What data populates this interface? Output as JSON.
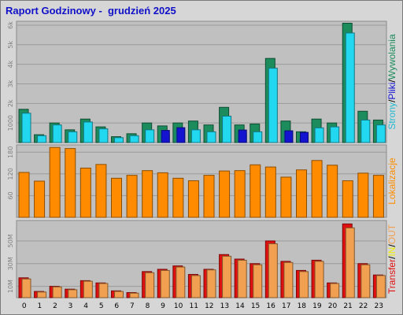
{
  "chart_data": {
    "title": "Raport Godzinowy -  grudzień 2025",
    "hours": [
      "0",
      "1",
      "2",
      "3",
      "4",
      "5",
      "6",
      "7",
      "8",
      "9",
      "10",
      "11",
      "12",
      "13",
      "14",
      "15",
      "16",
      "17",
      "18",
      "19",
      "20",
      "21",
      "22",
      "23"
    ],
    "colors": {
      "background": "#d6d6d6",
      "plot": "#c0c0c0",
      "title": "#1010c8",
      "pages": "#1c8c5c",
      "files": "#22d8f0",
      "visits": "#1414d0",
      "locations": "#ff8c00",
      "transfer_total": "#e01010",
      "transfer_in": "#f0a050",
      "transfer_out": "#f0f000"
    },
    "panels": [
      {
        "type": "bar",
        "ylabel": [
          "Strony",
          "/",
          "Pliki",
          "/",
          "Wywolania"
        ],
        "ylabel_colors": [
          "#20b8d0",
          "#000000",
          "#1414d0",
          "#000000",
          "#1c8c5c"
        ],
        "ylim": [
          0,
          6200
        ],
        "yticks": [
          "1000",
          "2k",
          "3k",
          "4k",
          "5k",
          "6k"
        ],
        "ytick_values": [
          1000,
          2000,
          3000,
          4000,
          5000,
          6000
        ],
        "series": [
          {
            "key": "pages",
            "values": [
              1700,
              400,
              1000,
              650,
              1200,
              800,
              300,
              450,
              1000,
              850,
              1000,
              1100,
              900,
              1800,
              900,
              950,
              4300,
              1100,
              550,
              1200,
              1000,
              6100,
              1600,
              1150
            ]
          },
          {
            "key": "files",
            "values": [
              1500,
              350,
              900,
              550,
              1050,
              700,
              250,
              350,
              650,
              450,
              650,
              650,
              550,
              1350,
              450,
              550,
              3800,
              550,
              200,
              750,
              800,
              5600,
              1150,
              900
            ]
          },
          {
            "key": "visits",
            "values": [
              0,
              0,
              0,
              0,
              0,
              0,
              0,
              0,
              0,
              620,
              760,
              0,
              0,
              0,
              640,
              0,
              0,
              600,
              520,
              0,
              0,
              0,
              0,
              0
            ]
          }
        ]
      },
      {
        "type": "bar",
        "ylabel": [
          "Lokalizacje"
        ],
        "ylabel_colors": [
          "#ff8c00"
        ],
        "ylim": [
          0,
          200
        ],
        "yticks": [
          "60",
          "120",
          "180"
        ],
        "ytick_values": [
          60,
          120,
          180
        ],
        "series": [
          {
            "key": "locations",
            "values": [
              124,
              100,
              193,
              190,
              136,
              146,
              108,
              116,
              129,
              123,
              108,
              101,
              116,
              128,
              129,
              145,
              139,
              111,
              131,
              157,
              144,
              101,
              122,
              116
            ]
          }
        ]
      },
      {
        "type": "bar",
        "ylabel": [
          "Transfer",
          "/",
          "IN",
          "/",
          "OUT"
        ],
        "ylabel_colors": [
          "#e01010",
          "#000000",
          "#f0f000",
          "#000000",
          "#f0a050"
        ],
        "ylim": [
          0,
          68
        ],
        "yticks": [
          "10M",
          "30M",
          "50M"
        ],
        "ytick_values": [
          10,
          30,
          50
        ],
        "series": [
          {
            "key": "transfer_total",
            "values": [
              17.5,
              5.5,
              10,
              7.5,
              15,
              13,
              6,
              4.5,
              23,
              25,
              28,
              20.5,
              25,
              38,
              34,
              30,
              50,
              32,
              24,
              33,
              13,
              65,
              30,
              20
            ]
          },
          {
            "key": "transfer_in",
            "values": [
              16.5,
              5,
              9.5,
              7,
              14.5,
              12.5,
              5.5,
              4,
              22,
              24,
              27,
              19.5,
              24.5,
              36.5,
              33,
              29,
              47.5,
              31,
              23,
              32,
              12.5,
              61.5,
              29,
              19.5
            ]
          }
        ]
      }
    ]
  }
}
